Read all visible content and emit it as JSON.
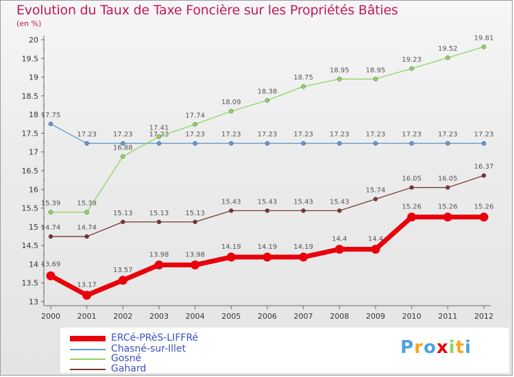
{
  "header": {
    "title": "Evolution du Taux de Taxe Foncière sur les Propriétés Bâties",
    "unit": "(en %)"
  },
  "brand": {
    "text": "Proxiti"
  },
  "chart_data": {
    "type": "line",
    "title": "Evolution du Taux de Taxe Foncière sur les Propriétés Bâties",
    "ylabel": "(en %)",
    "xlabel": "",
    "x": [
      "2000",
      "2001",
      "2002",
      "2003",
      "2004",
      "2005",
      "2006",
      "2007",
      "2008",
      "2009",
      "2010",
      "2011",
      "2012"
    ],
    "ylim": [
      13,
      20
    ],
    "yticks": [
      "13",
      "13.5",
      "14",
      "14.5",
      "15",
      "15.5",
      "16",
      "16.5",
      "17",
      "17.5",
      "18",
      "18.5",
      "19",
      "19.5",
      "20"
    ],
    "grid": false,
    "legend_position": "bottom",
    "series": [
      {
        "name": "ERCé-PRèS-LIFFRé",
        "color": "#e8000b",
        "values": [
          13.69,
          13.17,
          13.57,
          13.98,
          13.98,
          14.19,
          14.19,
          14.19,
          14.4,
          14.4,
          15.26,
          15.26,
          15.26
        ],
        "labels": [
          "13.69",
          "13.17",
          "13.57",
          "13.98",
          "13.98",
          "14.19",
          "14.19",
          "14.19",
          "14.4",
          "14.4",
          "15.26",
          "15.26",
          "15.26"
        ]
      },
      {
        "name": "Chasné-sur-Illet",
        "color": "#5b9bd5",
        "values": [
          17.75,
          17.23,
          17.23,
          17.23,
          17.23,
          17.23,
          17.23,
          17.23,
          17.23,
          17.23,
          17.23,
          17.23,
          17.23
        ],
        "labels": [
          "17.75",
          "17.23",
          "17.23",
          "17.23",
          "17.23",
          "17.23",
          "17.23",
          "17.23",
          "17.23",
          "17.23",
          "17.23",
          "17.23",
          "17.23"
        ]
      },
      {
        "name": "Gosné",
        "color": "#8ed65e",
        "values": [
          15.39,
          15.39,
          16.88,
          17.41,
          17.74,
          18.09,
          18.38,
          18.75,
          18.95,
          18.95,
          19.23,
          19.52,
          19.81
        ],
        "labels": [
          "15.39",
          "15.39",
          "16.88",
          "17.41",
          "17.74",
          "18.09",
          "18.38",
          "18.75",
          "18.95",
          "18.95",
          "19.23",
          "19.52",
          "19.81"
        ]
      },
      {
        "name": "Gahard",
        "color": "#7a3434",
        "values": [
          14.74,
          14.74,
          15.13,
          15.13,
          15.13,
          15.43,
          15.43,
          15.43,
          15.43,
          15.74,
          16.05,
          16.05,
          16.37
        ],
        "labels": [
          "14.74",
          "14.74",
          "15.13",
          "15.13",
          "15.13",
          "15.43",
          "15.43",
          "15.43",
          "15.43",
          "15.74",
          "16.05",
          "16.05",
          "16.37"
        ]
      }
    ]
  }
}
